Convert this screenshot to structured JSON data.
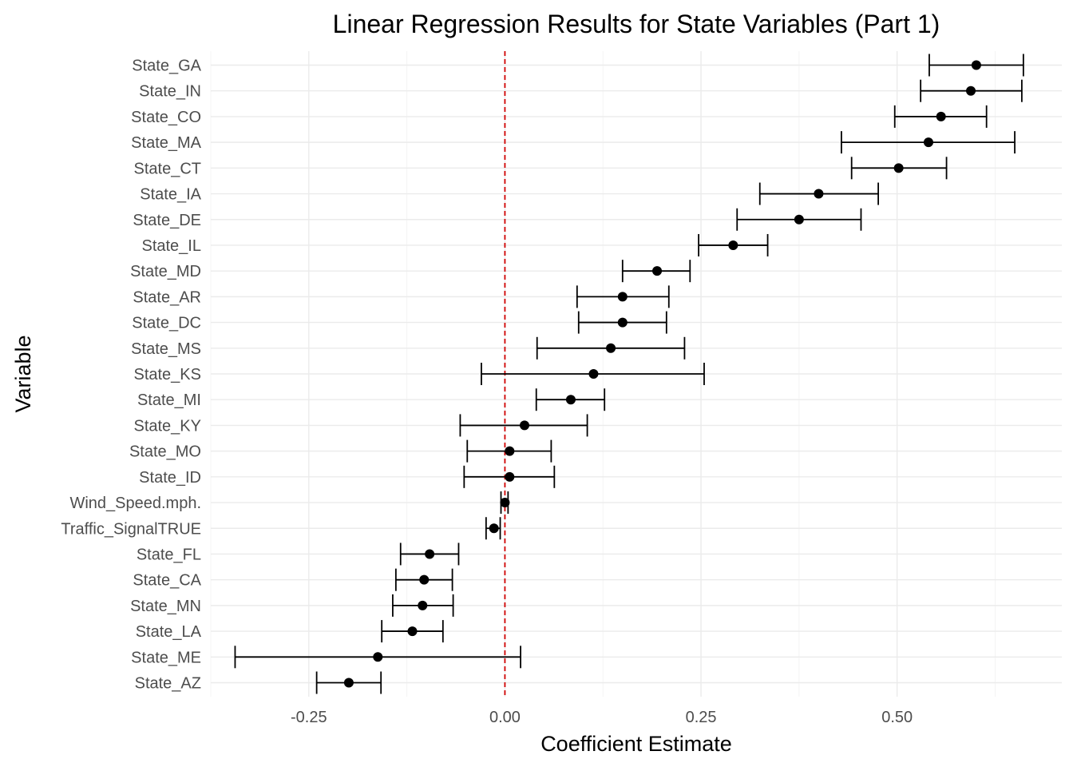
{
  "chart_data": {
    "type": "scatter",
    "title": "Linear Regression Results for State Variables (Part 1)",
    "xlabel": "Coefficient Estimate",
    "ylabel": "Variable",
    "xlim": [
      -0.375,
      0.71
    ],
    "x_ticks": [
      -0.25,
      0.0,
      0.25,
      0.5
    ],
    "x_tick_labels": [
      "-0.25",
      "0.00",
      "0.25",
      "0.50"
    ],
    "grid": true,
    "reference_line": {
      "x": 0,
      "color": "#d00000",
      "style": "dashed"
    },
    "point_color": "#000000",
    "categories": [
      "State_GA",
      "State_IN",
      "State_CO",
      "State_MA",
      "State_CT",
      "State_IA",
      "State_DE",
      "State_IL",
      "State_MD",
      "State_AR",
      "State_DC",
      "State_MS",
      "State_KS",
      "State_MI",
      "State_KY",
      "State_MO",
      "State_ID",
      "Wind_Speed.mph.",
      "Traffic_SignalTRUE",
      "State_FL",
      "State_CA",
      "State_MN",
      "State_LA",
      "State_ME",
      "State_AZ"
    ],
    "estimates": [
      0.601,
      0.594,
      0.556,
      0.54,
      0.502,
      0.4,
      0.375,
      0.291,
      0.194,
      0.15,
      0.15,
      0.135,
      0.113,
      0.084,
      0.025,
      0.006,
      0.006,
      0.0,
      -0.014,
      -0.096,
      -0.103,
      -0.105,
      -0.118,
      -0.162,
      -0.199
    ],
    "ci_low": [
      0.541,
      0.53,
      0.497,
      0.429,
      0.442,
      0.325,
      0.296,
      0.247,
      0.15,
      0.092,
      0.094,
      0.041,
      -0.03,
      0.04,
      -0.057,
      -0.048,
      -0.052,
      -0.005,
      -0.024,
      -0.133,
      -0.139,
      -0.143,
      -0.157,
      -0.344,
      -0.24
    ],
    "ci_high": [
      0.661,
      0.659,
      0.614,
      0.65,
      0.563,
      0.476,
      0.454,
      0.335,
      0.236,
      0.209,
      0.206,
      0.229,
      0.254,
      0.127,
      0.105,
      0.059,
      0.063,
      0.004,
      -0.006,
      -0.059,
      -0.067,
      -0.066,
      -0.079,
      0.02,
      -0.158
    ]
  }
}
